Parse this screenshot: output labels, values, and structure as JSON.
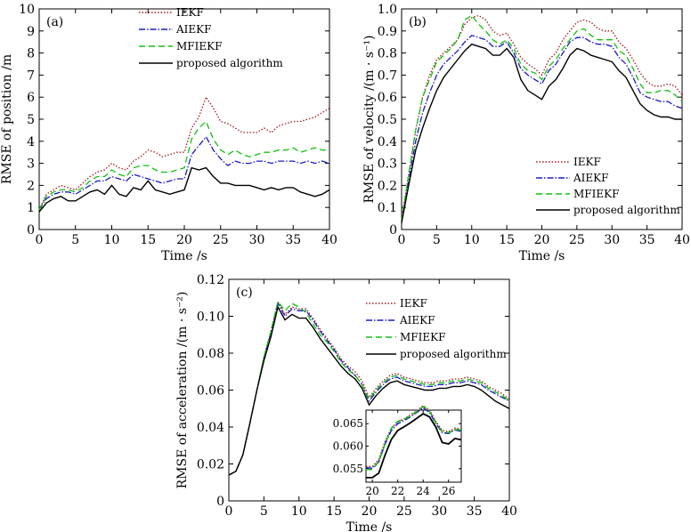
{
  "series_styles": [
    {
      "name": "IEKF",
      "color": "#a01818",
      "dash": "1.5,2"
    },
    {
      "name": "AIEKF",
      "color": "#1a1ac8",
      "dash": "7,2,1.5,2"
    },
    {
      "name": "MFIEKF",
      "color": "#10c010",
      "dash": "7,4"
    },
    {
      "name": "proposed algorithm",
      "color": "#000000",
      "dash": ""
    }
  ],
  "chart_data": [
    {
      "id": "a",
      "type": "line",
      "panel_label": "(a)",
      "xlabel": "Time /s",
      "ylabel": "RMSE of position /m",
      "xlim": [
        0,
        40
      ],
      "ylim": [
        0,
        10
      ],
      "xticks": [
        "0",
        "5",
        "10",
        "15",
        "20",
        "25",
        "30",
        "35",
        "40"
      ],
      "yticks": [
        "0",
        "1",
        "2",
        "3",
        "4",
        "5",
        "6",
        "7",
        "8",
        "9",
        "10"
      ],
      "legend_position": "top-center",
      "x": [
        0,
        1,
        2,
        3,
        4,
        5,
        6,
        7,
        8,
        9,
        10,
        11,
        12,
        13,
        14,
        15,
        16,
        17,
        18,
        19,
        20,
        21,
        22,
        23,
        24,
        25,
        26,
        27,
        28,
        29,
        30,
        31,
        32,
        33,
        34,
        35,
        36,
        37,
        38,
        39,
        40
      ],
      "series": [
        {
          "name": "IEKF",
          "values": [
            0.9,
            1.6,
            1.8,
            2.0,
            1.9,
            1.8,
            2.1,
            2.4,
            2.6,
            2.7,
            3.0,
            2.8,
            2.7,
            3.1,
            3.3,
            3.6,
            3.5,
            3.3,
            3.4,
            3.5,
            3.5,
            4.6,
            5.1,
            6.0,
            5.5,
            4.9,
            4.8,
            4.6,
            4.4,
            4.4,
            4.4,
            4.6,
            4.4,
            4.7,
            4.8,
            4.9,
            4.9,
            5.0,
            5.1,
            5.3,
            5.5
          ]
        },
        {
          "name": "AIEKF",
          "values": [
            0.9,
            1.4,
            1.6,
            1.7,
            1.7,
            1.6,
            1.8,
            2.0,
            2.2,
            2.2,
            2.4,
            2.3,
            2.2,
            2.5,
            2.4,
            2.3,
            2.2,
            2.1,
            2.2,
            2.3,
            2.3,
            3.4,
            3.8,
            4.2,
            3.6,
            3.2,
            2.9,
            3.1,
            3.0,
            3.0,
            3.1,
            3.1,
            3.0,
            3.1,
            3.1,
            3.1,
            3.0,
            3.1,
            3.0,
            3.1,
            3.0
          ]
        },
        {
          "name": "MFIEKF",
          "values": [
            0.9,
            1.5,
            1.7,
            1.8,
            1.8,
            1.7,
            1.9,
            2.2,
            2.4,
            2.4,
            2.7,
            2.5,
            2.4,
            2.8,
            2.9,
            2.9,
            2.7,
            2.6,
            2.6,
            2.7,
            2.8,
            4.1,
            4.6,
            4.9,
            4.1,
            3.6,
            3.4,
            3.6,
            3.4,
            3.3,
            3.4,
            3.5,
            3.5,
            3.6,
            3.6,
            3.7,
            3.5,
            3.6,
            3.7,
            3.6,
            3.6
          ]
        },
        {
          "name": "proposed algorithm",
          "values": [
            0.8,
            1.2,
            1.4,
            1.5,
            1.3,
            1.3,
            1.5,
            1.7,
            1.8,
            1.6,
            2.0,
            1.6,
            1.5,
            1.9,
            1.8,
            2.2,
            1.8,
            1.7,
            1.6,
            1.7,
            1.8,
            2.8,
            2.7,
            2.8,
            2.4,
            2.1,
            2.1,
            2.0,
            2.0,
            2.0,
            1.9,
            1.8,
            1.9,
            1.8,
            1.9,
            1.9,
            1.7,
            1.6,
            1.5,
            1.6,
            1.8
          ]
        }
      ]
    },
    {
      "id": "b",
      "type": "line",
      "panel_label": "(b)",
      "xlabel": "Time /s",
      "ylabel": "RMSE of velocity /(m · s⁻¹)",
      "xlim": [
        0,
        40
      ],
      "ylim": [
        0,
        1.0
      ],
      "xticks": [
        "0",
        "5",
        "10",
        "15",
        "20",
        "25",
        "30",
        "35",
        "40"
      ],
      "yticks": [
        "0",
        "0.1",
        "0.2",
        "0.3",
        "0.4",
        "0.5",
        "0.6",
        "0.7",
        "0.8",
        "0.9",
        "1.0"
      ],
      "legend_position": "bottom-right",
      "x": [
        0,
        1,
        2,
        3,
        4,
        5,
        6,
        7,
        8,
        9,
        10,
        11,
        12,
        13,
        14,
        15,
        16,
        17,
        18,
        19,
        20,
        21,
        22,
        23,
        24,
        25,
        26,
        27,
        28,
        29,
        30,
        31,
        32,
        33,
        34,
        35,
        36,
        37,
        38,
        39,
        40
      ],
      "series": [
        {
          "name": "IEKF",
          "values": [
            0.05,
            0.25,
            0.45,
            0.6,
            0.7,
            0.77,
            0.8,
            0.83,
            0.86,
            0.93,
            0.96,
            0.97,
            0.95,
            0.9,
            0.88,
            0.89,
            0.84,
            0.78,
            0.75,
            0.73,
            0.7,
            0.77,
            0.8,
            0.86,
            0.9,
            0.94,
            0.95,
            0.94,
            0.91,
            0.9,
            0.9,
            0.85,
            0.82,
            0.77,
            0.71,
            0.67,
            0.65,
            0.65,
            0.66,
            0.65,
            0.61
          ]
        },
        {
          "name": "AIEKF",
          "values": [
            0.04,
            0.22,
            0.4,
            0.53,
            0.62,
            0.7,
            0.75,
            0.78,
            0.81,
            0.85,
            0.88,
            0.87,
            0.86,
            0.83,
            0.83,
            0.85,
            0.8,
            0.73,
            0.7,
            0.68,
            0.66,
            0.72,
            0.75,
            0.8,
            0.85,
            0.87,
            0.87,
            0.85,
            0.84,
            0.84,
            0.83,
            0.78,
            0.75,
            0.69,
            0.62,
            0.6,
            0.59,
            0.58,
            0.58,
            0.56,
            0.55
          ]
        },
        {
          "name": "MFIEKF",
          "values": [
            0.04,
            0.25,
            0.45,
            0.6,
            0.68,
            0.76,
            0.79,
            0.82,
            0.86,
            0.95,
            0.97,
            0.93,
            0.9,
            0.86,
            0.84,
            0.86,
            0.82,
            0.75,
            0.72,
            0.71,
            0.68,
            0.74,
            0.77,
            0.82,
            0.86,
            0.9,
            0.91,
            0.88,
            0.86,
            0.86,
            0.86,
            0.81,
            0.79,
            0.73,
            0.66,
            0.62,
            0.62,
            0.63,
            0.63,
            0.61,
            0.58
          ]
        },
        {
          "name": "proposed algorithm",
          "values": [
            0.03,
            0.2,
            0.36,
            0.46,
            0.55,
            0.63,
            0.69,
            0.73,
            0.77,
            0.81,
            0.84,
            0.83,
            0.82,
            0.79,
            0.79,
            0.82,
            0.78,
            0.68,
            0.63,
            0.61,
            0.59,
            0.65,
            0.68,
            0.73,
            0.79,
            0.82,
            0.81,
            0.79,
            0.78,
            0.77,
            0.76,
            0.72,
            0.69,
            0.63,
            0.57,
            0.54,
            0.52,
            0.51,
            0.51,
            0.5,
            0.5
          ]
        }
      ]
    },
    {
      "id": "c",
      "type": "line",
      "panel_label": "(c)",
      "xlabel": "Time /s",
      "ylabel": "RMSE of acceleration /(m · s⁻²)",
      "xlim": [
        0,
        40
      ],
      "ylim": [
        0,
        0.12
      ],
      "xticks": [
        "0",
        "5",
        "10",
        "15",
        "20",
        "25",
        "30",
        "35",
        "40"
      ],
      "yticks": [
        "0",
        "0.02",
        "0.04",
        "0.06",
        "0.08",
        "0.10",
        "0.12"
      ],
      "legend_position": "top-right",
      "x": [
        0,
        1,
        2,
        3,
        4,
        5,
        6,
        7,
        8,
        9,
        10,
        11,
        12,
        13,
        14,
        15,
        16,
        17,
        18,
        19,
        20,
        21,
        22,
        23,
        24,
        25,
        26,
        27,
        28,
        29,
        30,
        31,
        32,
        33,
        34,
        35,
        36,
        37,
        38,
        39,
        40
      ],
      "series": [
        {
          "name": "IEKF",
          "values": [
            0.014,
            0.016,
            0.025,
            0.042,
            0.06,
            0.078,
            0.092,
            0.108,
            0.101,
            0.105,
            0.104,
            0.104,
            0.099,
            0.093,
            0.088,
            0.083,
            0.077,
            0.073,
            0.07,
            0.065,
            0.056,
            0.061,
            0.065,
            0.068,
            0.069,
            0.067,
            0.066,
            0.065,
            0.064,
            0.064,
            0.065,
            0.065,
            0.066,
            0.066,
            0.067,
            0.066,
            0.065,
            0.062,
            0.06,
            0.058,
            0.055
          ]
        },
        {
          "name": "AIEKF",
          "values": [
            0.014,
            0.016,
            0.025,
            0.042,
            0.06,
            0.077,
            0.091,
            0.107,
            0.1,
            0.104,
            0.103,
            0.103,
            0.098,
            0.092,
            0.087,
            0.082,
            0.076,
            0.072,
            0.068,
            0.063,
            0.054,
            0.059,
            0.063,
            0.066,
            0.067,
            0.065,
            0.064,
            0.063,
            0.062,
            0.062,
            0.063,
            0.063,
            0.064,
            0.064,
            0.065,
            0.064,
            0.063,
            0.06,
            0.058,
            0.056,
            0.054
          ]
        },
        {
          "name": "MFIEKF",
          "values": [
            0.014,
            0.016,
            0.025,
            0.042,
            0.06,
            0.078,
            0.092,
            0.108,
            0.103,
            0.107,
            0.105,
            0.102,
            0.096,
            0.09,
            0.086,
            0.081,
            0.075,
            0.071,
            0.068,
            0.063,
            0.055,
            0.06,
            0.064,
            0.067,
            0.068,
            0.066,
            0.065,
            0.064,
            0.063,
            0.063,
            0.064,
            0.064,
            0.065,
            0.065,
            0.066,
            0.065,
            0.064,
            0.061,
            0.059,
            0.057,
            0.054
          ]
        },
        {
          "name": "proposed algorithm",
          "values": [
            0.014,
            0.016,
            0.025,
            0.042,
            0.06,
            0.076,
            0.089,
            0.105,
            0.098,
            0.101,
            0.099,
            0.099,
            0.094,
            0.088,
            0.083,
            0.078,
            0.073,
            0.069,
            0.066,
            0.061,
            0.052,
            0.057,
            0.061,
            0.064,
            0.065,
            0.063,
            0.062,
            0.061,
            0.06,
            0.06,
            0.061,
            0.061,
            0.062,
            0.062,
            0.063,
            0.062,
            0.06,
            0.057,
            0.054,
            0.052,
            0.05
          ]
        }
      ],
      "inset": {
        "xlim": [
          19.5,
          27
        ],
        "ylim": [
          0.052,
          0.068
        ],
        "xticks": [
          "20",
          "22",
          "24",
          "26"
        ],
        "yticks": [
          "0.055",
          "0.060",
          "0.065"
        ],
        "x": [
          19.5,
          20,
          20.5,
          21,
          21.5,
          22,
          22.5,
          23,
          23.5,
          24,
          24.5,
          25,
          25.5,
          26,
          26.5,
          27
        ],
        "series": [
          {
            "name": "IEKF",
            "values": [
              0.0555,
              0.0555,
              0.057,
              0.061,
              0.064,
              0.0655,
              0.066,
              0.067,
              0.0678,
              0.069,
              0.068,
              0.0655,
              0.0635,
              0.0632,
              0.064,
              0.0638
            ]
          },
          {
            "name": "AIEKF",
            "values": [
              0.0552,
              0.0551,
              0.0565,
              0.0605,
              0.0635,
              0.065,
              0.0657,
              0.0665,
              0.0675,
              0.0685,
              0.0675,
              0.065,
              0.063,
              0.0628,
              0.0636,
              0.0633
            ]
          },
          {
            "name": "MFIEKF",
            "values": [
              0.0548,
              0.0548,
              0.0565,
              0.0605,
              0.064,
              0.0655,
              0.066,
              0.0667,
              0.0677,
              0.0688,
              0.0678,
              0.0652,
              0.0632,
              0.063,
              0.0637,
              0.0636
            ]
          },
          {
            "name": "proposed algorithm",
            "values": [
              0.053,
              0.053,
              0.054,
              0.058,
              0.0615,
              0.0635,
              0.0643,
              0.0652,
              0.0662,
              0.0672,
              0.0665,
              0.0642,
              0.0608,
              0.0605,
              0.0617,
              0.0614
            ]
          }
        ]
      }
    }
  ]
}
